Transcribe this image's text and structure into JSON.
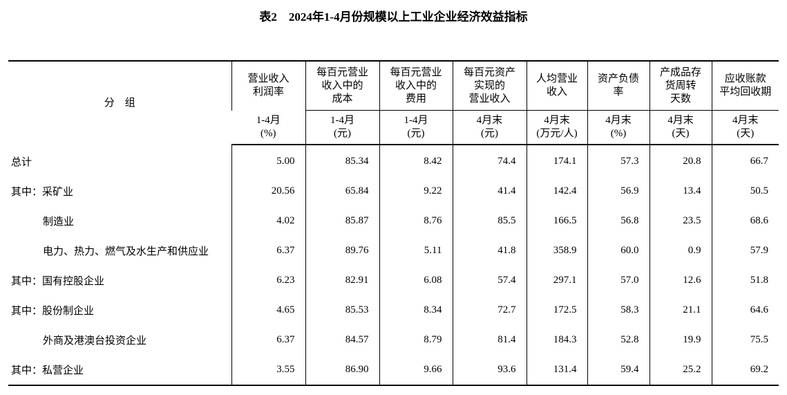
{
  "title": "表2　2024年1-4月份规模以上工业企业经济效益指标",
  "table": {
    "group_header": "分　组",
    "columns": [
      {
        "name": [
          "营业收入",
          "利润率"
        ],
        "period": "1-4月",
        "unit": "(%)"
      },
      {
        "name": [
          "每百元营业",
          "收入中的",
          "成本"
        ],
        "period": "1-4月",
        "unit": "(元)"
      },
      {
        "name": [
          "每百元营业",
          "收入中的",
          "费用"
        ],
        "period": "1-4月",
        "unit": "(元)"
      },
      {
        "name": [
          "每百元资产",
          "实现的",
          "营业收入"
        ],
        "period": "4月末",
        "unit": "(元)"
      },
      {
        "name": [
          "人均营业",
          "收入"
        ],
        "period": "4月末",
        "unit": "(万元/人)"
      },
      {
        "name": [
          "资产负债",
          "率"
        ],
        "period": "4月末",
        "unit": "(%)"
      },
      {
        "name": [
          "产成品存",
          "货周转",
          "天数"
        ],
        "period": "4月末",
        "unit": "(天)"
      },
      {
        "name": [
          "应收账款",
          "平均回收期"
        ],
        "period": "4月末",
        "unit": "(天)"
      }
    ],
    "rows": [
      {
        "group": "总计",
        "values": [
          "5.00",
          "85.34",
          "8.42",
          "74.4",
          "174.1",
          "57.3",
          "20.8",
          "66.7"
        ]
      },
      {
        "group": "其中：采矿业",
        "values": [
          "20.56",
          "65.84",
          "9.22",
          "41.4",
          "142.4",
          "56.9",
          "13.4",
          "50.5"
        ]
      },
      {
        "group": "制造业",
        "values": [
          "4.02",
          "85.87",
          "8.76",
          "85.5",
          "166.5",
          "56.8",
          "23.5",
          "68.6"
        ]
      },
      {
        "group": "电力、热力、燃气及水生产和供应业",
        "values": [
          "6.37",
          "89.76",
          "5.11",
          "41.8",
          "358.9",
          "60.0",
          "0.9",
          "57.9"
        ]
      },
      {
        "group": "其中：国有控股企业",
        "values": [
          "6.23",
          "82.91",
          "6.08",
          "57.4",
          "297.1",
          "57.0",
          "12.6",
          "51.8"
        ]
      },
      {
        "group": "其中：股份制企业",
        "values": [
          "4.65",
          "85.53",
          "8.34",
          "72.7",
          "172.5",
          "58.3",
          "21.1",
          "64.6"
        ]
      },
      {
        "group": "外商及港澳台投资企业",
        "values": [
          "6.37",
          "84.57",
          "8.79",
          "81.4",
          "184.3",
          "52.8",
          "19.9",
          "75.5"
        ]
      },
      {
        "group": "其中：私营企业",
        "values": [
          "3.55",
          "86.90",
          "9.66",
          "93.6",
          "131.4",
          "59.4",
          "25.2",
          "69.2"
        ]
      }
    ]
  }
}
